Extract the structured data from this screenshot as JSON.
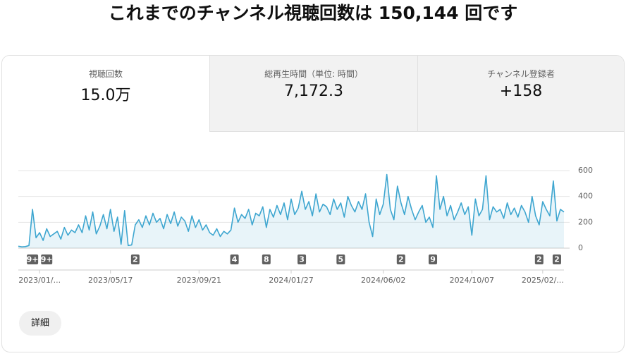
{
  "header": {
    "title": "これまでのチャンネル視聴回数は 150,144 回です"
  },
  "tabs": [
    {
      "label": "視聴回数",
      "value": "15.0万"
    },
    {
      "label": "総再生時間（単位: 時間）",
      "value": "7,172.3"
    },
    {
      "label": "チャンネル登録者",
      "value": "+158"
    }
  ],
  "chart_data": {
    "type": "area",
    "color": "#3ea6d0",
    "ylim": [
      0,
      600
    ],
    "yticks": [
      0,
      200,
      400,
      600
    ],
    "grid": true,
    "values": [
      15,
      10,
      12,
      20,
      300,
      80,
      120,
      60,
      150,
      90,
      110,
      130,
      70,
      160,
      100,
      140,
      120,
      180,
      120,
      250,
      140,
      280,
      110,
      170,
      260,
      150,
      300,
      130,
      240,
      30,
      290,
      20,
      25,
      180,
      220,
      160,
      250,
      180,
      270,
      200,
      230,
      150,
      260,
      190,
      280,
      170,
      240,
      210,
      130,
      250,
      160,
      220,
      140,
      180,
      120,
      100,
      150,
      90,
      130,
      110,
      140,
      310,
      200,
      260,
      230,
      300,
      180,
      270,
      250,
      320,
      160,
      300,
      240,
      330,
      260,
      350,
      220,
      380,
      260,
      310,
      440,
      300,
      360,
      250,
      420,
      280,
      340,
      320,
      260,
      380,
      300,
      350,
      240,
      400,
      330,
      280,
      360,
      300,
      420,
      200,
      90,
      380,
      260,
      340,
      570,
      300,
      220,
      480,
      350,
      260,
      400,
      300,
      220,
      280,
      330,
      200,
      240,
      160,
      560,
      300,
      400,
      250,
      330,
      220,
      280,
      350,
      260,
      320,
      100,
      380,
      250,
      300,
      560,
      220,
      320,
      280,
      300,
      230,
      350,
      260,
      310,
      240,
      330,
      280,
      200,
      400,
      250,
      180,
      360,
      300,
      250,
      520,
      210,
      300,
      280
    ],
    "categories": [
      null,
      null,
      null,
      null,
      null,
      null,
      "2023/01/...",
      null,
      null,
      null,
      null,
      null,
      null,
      null,
      null,
      null,
      null,
      null,
      null,
      null,
      null,
      null,
      null,
      null,
      null,
      null,
      "2023/05/17",
      null,
      null,
      null,
      null,
      null,
      null,
      null,
      null,
      null,
      null,
      null,
      null,
      null,
      null,
      null,
      null,
      null,
      null,
      null,
      null,
      null,
      null,
      null,
      null,
      "2023/09/21",
      null,
      null,
      null,
      null,
      null,
      null,
      null,
      null,
      null,
      null,
      null,
      null,
      null,
      null,
      null,
      null,
      null,
      null,
      null,
      null,
      null,
      null,
      null,
      null,
      null,
      "2024/01/27",
      null,
      null,
      null,
      null,
      null,
      null,
      null,
      null,
      null,
      null,
      null,
      null,
      null,
      null,
      null,
      null,
      null,
      null,
      null,
      null,
      null,
      null,
      null,
      null,
      null,
      "2024/06/02",
      null,
      null,
      null,
      null,
      null,
      null,
      null,
      null,
      null,
      null,
      null,
      null,
      null,
      null,
      null,
      null,
      null,
      null,
      null,
      null,
      null,
      null,
      null,
      null,
      "2024/10/07",
      null,
      null,
      null,
      null,
      null,
      null,
      null,
      null,
      null,
      null,
      null,
      null,
      null,
      null,
      null,
      null,
      null,
      null,
      null,
      "2025/02/...",
      null,
      null,
      null,
      null,
      null,
      null
    ],
    "badges": [
      null,
      null,
      null,
      null,
      "9+",
      null,
      null,
      null,
      "9+",
      null,
      null,
      null,
      null,
      null,
      null,
      null,
      null,
      null,
      null,
      null,
      null,
      null,
      null,
      null,
      null,
      null,
      null,
      null,
      null,
      null,
      null,
      null,
      null,
      "2",
      null,
      null,
      null,
      null,
      null,
      null,
      null,
      null,
      null,
      null,
      null,
      null,
      null,
      null,
      null,
      null,
      null,
      null,
      null,
      null,
      null,
      null,
      null,
      null,
      null,
      null,
      null,
      "4",
      null,
      null,
      null,
      null,
      null,
      null,
      null,
      null,
      "8",
      null,
      null,
      null,
      null,
      null,
      null,
      null,
      null,
      null,
      "3",
      null,
      null,
      null,
      null,
      null,
      null,
      null,
      null,
      null,
      null,
      "5",
      null,
      null,
      null,
      null,
      null,
      null,
      null,
      null,
      null,
      null,
      null,
      null,
      null,
      null,
      null,
      null,
      "2",
      null,
      null,
      null,
      null,
      null,
      null,
      null,
      null,
      "9",
      null,
      null,
      null,
      null,
      null,
      null,
      null,
      null,
      null,
      null,
      null,
      null,
      null,
      null,
      null,
      null,
      null,
      null,
      null,
      null,
      null,
      null,
      null,
      null,
      null,
      null,
      null,
      null,
      null,
      "2",
      null,
      null,
      null,
      null,
      "2",
      null,
      null
    ]
  },
  "button": {
    "label": "詳細"
  }
}
